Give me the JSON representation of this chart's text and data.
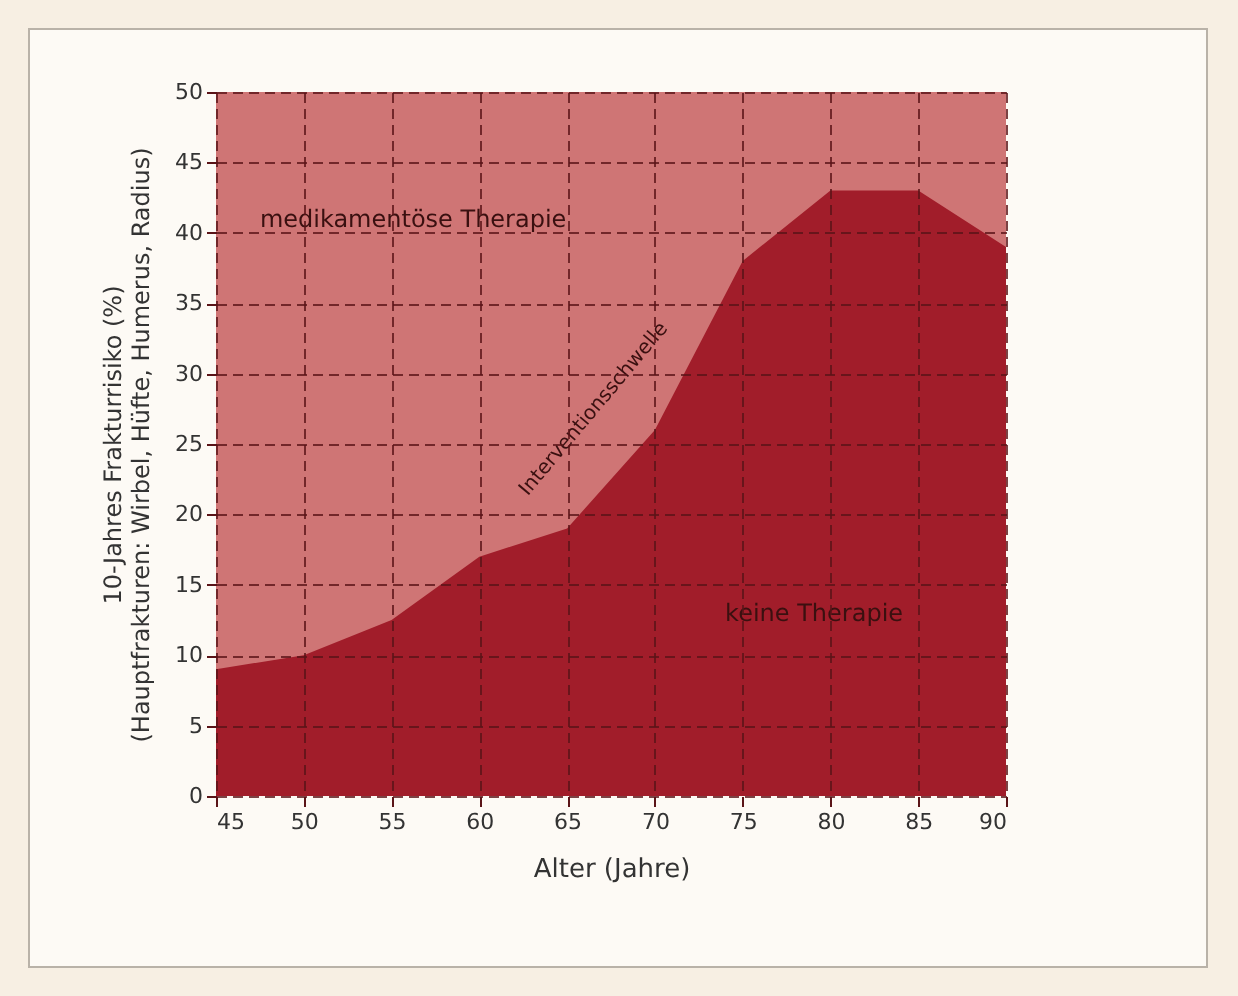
{
  "chart_data": {
    "type": "area",
    "x": [
      45,
      50,
      55,
      60,
      65,
      70,
      75,
      80,
      85,
      90
    ],
    "values": [
      9,
      10,
      12.5,
      17,
      19,
      26,
      38,
      43,
      43,
      39
    ],
    "color": "#a11d2a",
    "xlabel": "Alter (Jahre)",
    "ylabel": "10-Jahres Frakturrisiko (%)\n(Hauptfrakturen: Wirbel, Hüfte, Humerus, Radius)",
    "xlim": [
      45,
      90
    ],
    "xticks": [
      45,
      50,
      55,
      60,
      65,
      70,
      75,
      80,
      85,
      90
    ],
    "ylim": [
      0,
      50
    ],
    "yticks": [
      0,
      5,
      10,
      15,
      20,
      25,
      30,
      35,
      40,
      45,
      50
    ],
    "grid": true,
    "bands": [
      {
        "axis": "y",
        "from": 0,
        "to": 50,
        "color": "#cf7575"
      }
    ],
    "annotations": [
      "medikamentöse Therapie",
      "Interventionsschwelle",
      "keine Therapie"
    ]
  }
}
